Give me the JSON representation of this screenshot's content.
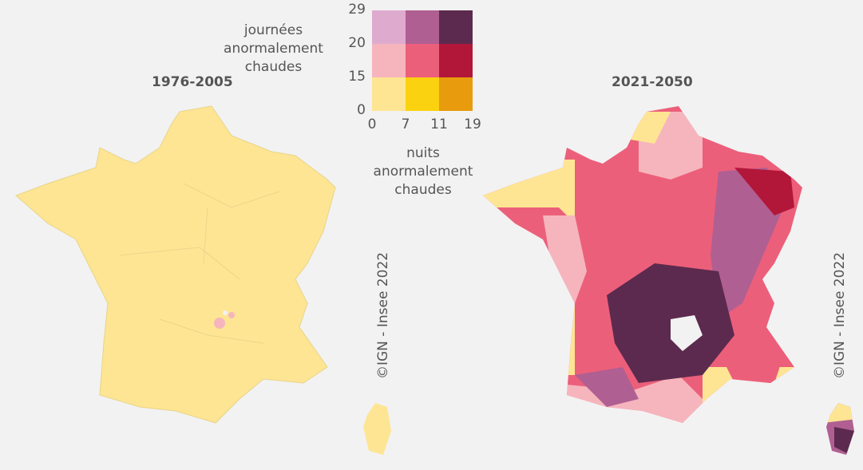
{
  "maps": [
    {
      "title": "1976-2005"
    },
    {
      "title": "2021-2050"
    }
  ],
  "legend": {
    "y_label": "journées anormalement chaudes",
    "x_label": "nuits anormalement chaudes",
    "y_ticks": [
      0,
      15,
      20,
      29
    ],
    "x_ticks": [
      0,
      7,
      11,
      19
    ],
    "colors": [
      [
        "#deabcf",
        "#b05f92",
        "#5c2a4e"
      ],
      [
        "#f6b5bd",
        "#ec5f7a",
        "#b2173a"
      ],
      [
        "#fee593",
        "#fbd20f",
        "#e89c0d"
      ]
    ]
  },
  "credit": "©IGN - Insee 2022"
}
